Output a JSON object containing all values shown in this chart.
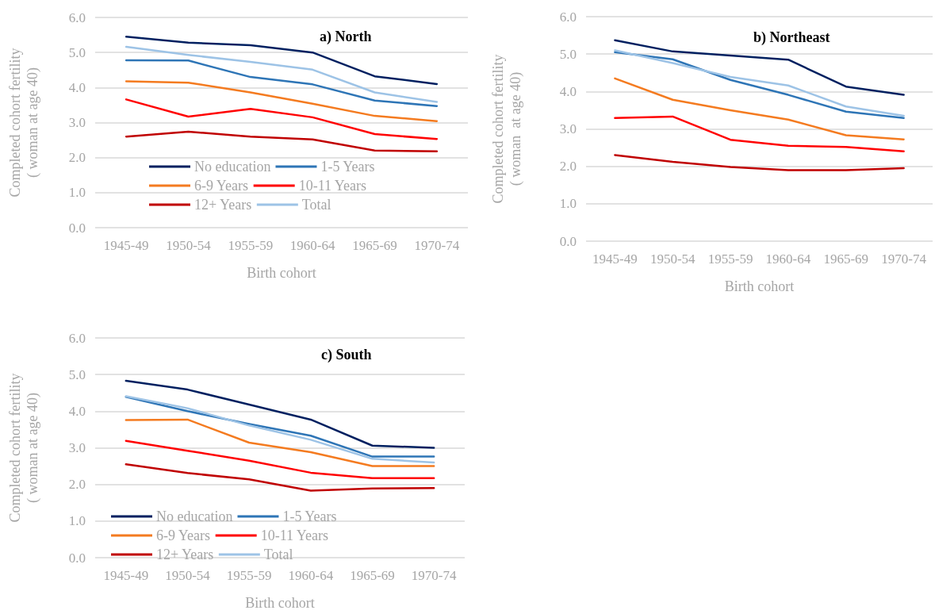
{
  "chart_data": [
    {
      "type": "line",
      "title": "a) North",
      "xlabel": "Birth cohort",
      "ylabel": "Completed cohort fertility\n( woman at age 40)",
      "categories": [
        "1945-49",
        "1950-54",
        "1955-59",
        "1960-64",
        "1965-69",
        "1970-74"
      ],
      "ylim": [
        0,
        6
      ],
      "yticks": [
        {
          "value": 0,
          "label": "0.0"
        },
        {
          "value": 1,
          "label": "1.0"
        },
        {
          "value": 2,
          "label": "2.0"
        },
        {
          "value": 3,
          "label": "3.0"
        },
        {
          "value": 4,
          "label": "4.0"
        },
        {
          "value": 5,
          "label": "5.0"
        },
        {
          "value": 6,
          "label": "6.0"
        }
      ],
      "grid": "y",
      "legend": "bottom",
      "marker": "none",
      "line_style": "solid",
      "series": [
        {
          "name": "No education",
          "color": "#002060",
          "values": [
            5.45,
            5.28,
            5.21,
            5.0,
            4.32,
            4.1
          ]
        },
        {
          "name": "1-5 Years",
          "color": "#2e75b6",
          "values": [
            4.78,
            4.77,
            4.3,
            4.09,
            3.63,
            3.47
          ]
        },
        {
          "name": "6-9 Years",
          "color": "#f47b20",
          "values": [
            4.18,
            4.14,
            3.86,
            3.54,
            3.19,
            3.04
          ]
        },
        {
          "name": "10-11 Years",
          "color": "#ff0000",
          "values": [
            3.66,
            3.17,
            3.39,
            3.15,
            2.67,
            2.53
          ]
        },
        {
          "name": "12+ Years",
          "color": "#c00000",
          "values": [
            2.6,
            2.74,
            2.6,
            2.52,
            2.2,
            2.18
          ]
        },
        {
          "name": "Total",
          "color": "#9dc3e6",
          "values": [
            5.16,
            4.93,
            4.73,
            4.51,
            3.86,
            3.59
          ]
        }
      ]
    },
    {
      "type": "line",
      "title": "b) Northeast",
      "xlabel": "Birth cohort",
      "ylabel": "Completed cohort fertility\n( woman  at age 40)",
      "categories": [
        "1945-49",
        "1950-54",
        "1955-59",
        "1960-64",
        "1965-69",
        "1970-74"
      ],
      "ylim": [
        0,
        6
      ],
      "yticks": [
        {
          "value": 0,
          "label": "0.0"
        },
        {
          "value": 1,
          "label": "1.0"
        },
        {
          "value": 2,
          "label": "2.0"
        },
        {
          "value": 3,
          "label": "3.0"
        },
        {
          "value": 4,
          "label": "4.0"
        },
        {
          "value": 5,
          "label": "5.0"
        },
        {
          "value": 6,
          "label": "6.0"
        }
      ],
      "grid": "y",
      "marker": "none",
      "line_style": "solid",
      "series": [
        {
          "color": "#002060",
          "values": [
            5.37,
            5.07,
            4.96,
            4.85,
            4.13,
            3.91
          ]
        },
        {
          "color": "#2e75b6",
          "values": [
            5.05,
            4.86,
            4.31,
            3.91,
            3.46,
            3.29
          ]
        },
        {
          "color": "#f47b20",
          "values": [
            4.35,
            3.78,
            3.5,
            3.25,
            2.83,
            2.72
          ]
        },
        {
          "color": "#ff0000",
          "values": [
            3.29,
            3.33,
            2.71,
            2.55,
            2.52,
            2.4
          ]
        },
        {
          "color": "#c00000",
          "values": [
            2.3,
            2.12,
            1.98,
            1.9,
            1.9,
            1.95
          ]
        },
        {
          "color": "#9dc3e6",
          "values": [
            5.1,
            4.76,
            4.39,
            4.16,
            3.6,
            3.35
          ]
        }
      ]
    },
    {
      "type": "line",
      "title": "c) South",
      "xlabel": "Birth cohort",
      "ylabel": "Completed cohort fertility\n( woman at age 40)",
      "categories": [
        "1945-49",
        "1950-54",
        "1955-59",
        "1960-64",
        "1965-69",
        "1970-74"
      ],
      "ylim": [
        0,
        6
      ],
      "yticks": [
        {
          "value": 0,
          "label": "0.0"
        },
        {
          "value": 1,
          "label": "1.0"
        },
        {
          "value": 2,
          "label": "2.0"
        },
        {
          "value": 3,
          "label": "3.0"
        },
        {
          "value": 4,
          "label": "4.0"
        },
        {
          "value": 5,
          "label": "5.0"
        },
        {
          "value": 6,
          "label": "6.0"
        }
      ],
      "grid": "y",
      "legend": "bottom",
      "marker": "none",
      "line_style": "solid",
      "series": [
        {
          "name": "No education",
          "color": "#002060",
          "values": [
            4.83,
            4.59,
            4.18,
            3.77,
            3.06,
            3.0
          ]
        },
        {
          "name": "1-5 Years",
          "color": "#2e75b6",
          "values": [
            4.39,
            4.0,
            3.65,
            3.33,
            2.76,
            2.76
          ]
        },
        {
          "name": "6-9 Years",
          "color": "#f47b20",
          "values": [
            3.76,
            3.77,
            3.14,
            2.88,
            2.5,
            2.5
          ]
        },
        {
          "name": "10-11 Years",
          "color": "#ff0000",
          "values": [
            3.19,
            2.92,
            2.65,
            2.32,
            2.17,
            2.17
          ]
        },
        {
          "name": "12+ Years",
          "color": "#c00000",
          "values": [
            2.55,
            2.31,
            2.14,
            1.83,
            1.89,
            1.9
          ]
        },
        {
          "name": "Total",
          "color": "#9dc3e6",
          "values": [
            4.41,
            4.08,
            3.61,
            3.22,
            2.7,
            2.6
          ]
        }
      ]
    }
  ]
}
